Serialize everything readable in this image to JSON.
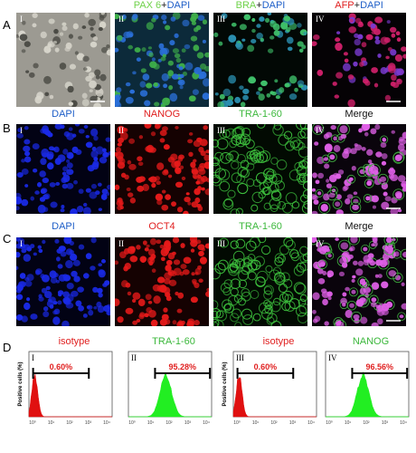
{
  "figure": {
    "rows": [
      {
        "letter": "A",
        "cells": [
          {
            "numeral": "I"
          },
          {
            "numeral": "II",
            "label": [
              {
                "text": "PAX 6",
                "color": "#6fd24a"
              },
              {
                "text": "+",
                "color": "#222222"
              },
              {
                "text": "DAPI",
                "color": "#1f5fc8"
              }
            ]
          },
          {
            "numeral": "III",
            "label": [
              {
                "text": "BRA",
                "color": "#6fd24a"
              },
              {
                "text": "+",
                "color": "#222222"
              },
              {
                "text": "DAPI",
                "color": "#1f5fc8"
              }
            ]
          },
          {
            "numeral": "IV",
            "label": [
              {
                "text": "AFP",
                "color": "#e02020"
              },
              {
                "text": "+",
                "color": "#222222"
              },
              {
                "text": "DAPI",
                "color": "#1f5fc8"
              }
            ]
          }
        ]
      },
      {
        "letter": "B",
        "cells": [
          {
            "numeral": "I",
            "label": [
              {
                "text": "DAPI",
                "color": "#1f5fc8"
              }
            ]
          },
          {
            "numeral": "II",
            "label": [
              {
                "text": "NANOG",
                "color": "#e02020"
              }
            ]
          },
          {
            "numeral": "III",
            "label": [
              {
                "text": "TRA-1-60",
                "color": "#3cb83c"
              }
            ]
          },
          {
            "numeral": "IV",
            "label": [
              {
                "text": "Merge",
                "color": "#111111"
              }
            ]
          }
        ]
      },
      {
        "letter": "C",
        "cells": [
          {
            "numeral": "I",
            "label": [
              {
                "text": "DAPI",
                "color": "#1f5fc8"
              }
            ]
          },
          {
            "numeral": "II",
            "label": [
              {
                "text": "OCT4",
                "color": "#e02020"
              }
            ]
          },
          {
            "numeral": "III",
            "label": [
              {
                "text": "TRA-1-60",
                "color": "#3cb83c"
              }
            ]
          },
          {
            "numeral": "IV",
            "label": [
              {
                "text": "Merge",
                "color": "#111111"
              }
            ]
          }
        ]
      }
    ],
    "flow": {
      "letter": "D",
      "y_label": "Positive cells (%)",
      "x_ticks": [
        "10⁰",
        "10¹",
        "10²",
        "10³",
        "10⁴"
      ],
      "plots": [
        {
          "numeral": "I",
          "title": "isotype",
          "title_color": "#e02020",
          "fill": "#e01010",
          "percent": "0.60%"
        },
        {
          "numeral": "II",
          "title": "TRA-1-60",
          "title_color": "#3cb83c",
          "fill": "#22ee22",
          "percent": "95.28%"
        },
        {
          "numeral": "III",
          "title": "isotype",
          "title_color": "#e02020",
          "fill": "#e01010",
          "percent": "0.60%"
        },
        {
          "numeral": "IV",
          "title": "NANOG",
          "title_color": "#3cb83c",
          "fill": "#22ee22",
          "percent": "96.56%"
        }
      ]
    }
  }
}
